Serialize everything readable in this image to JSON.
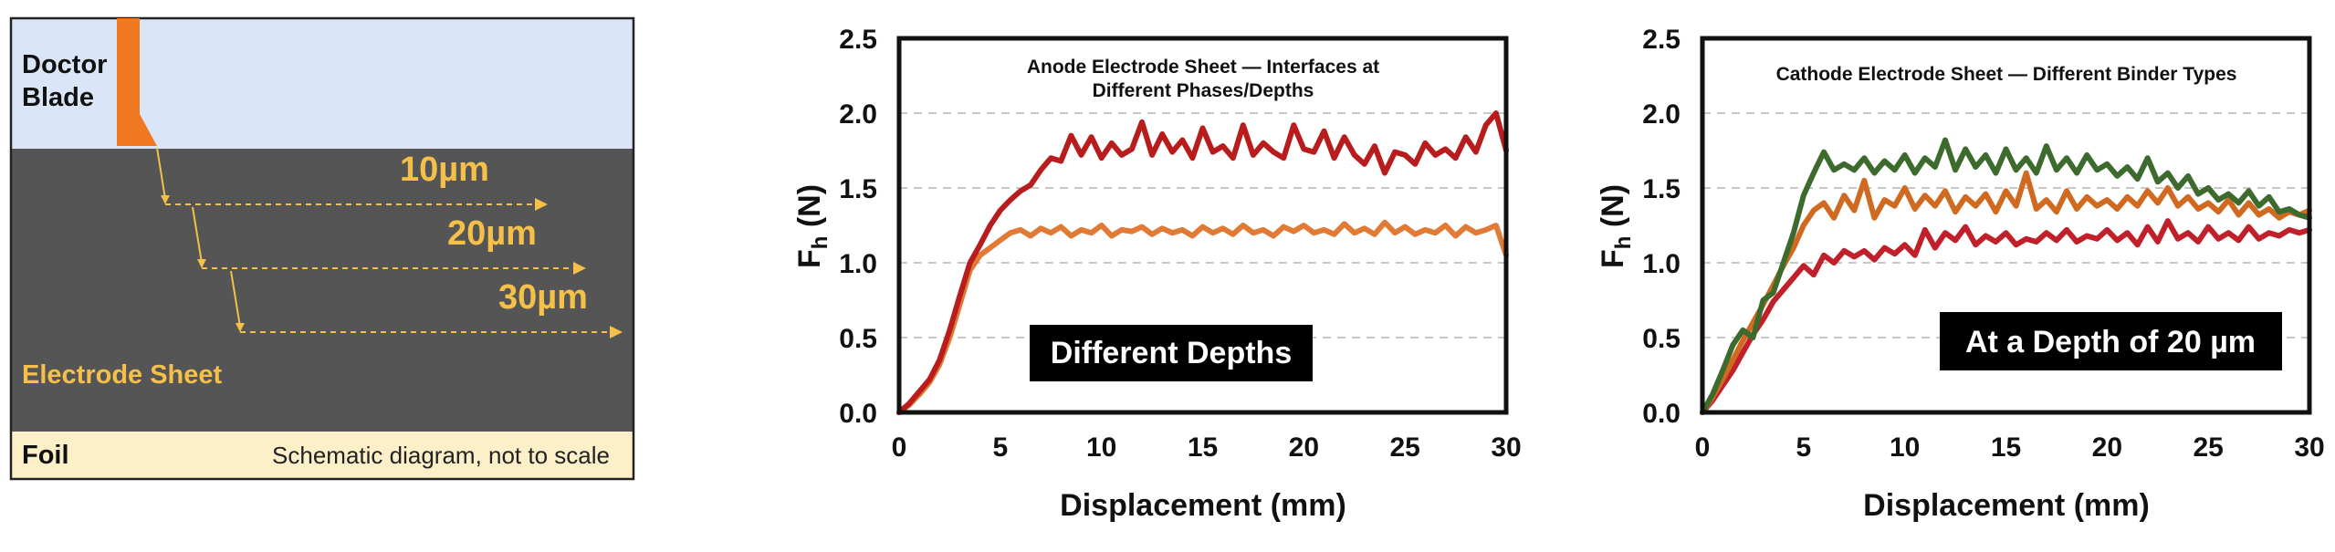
{
  "schematic": {
    "blade_label": [
      "Doctor",
      "Blade"
    ],
    "depths": [
      "10µm",
      "20µm",
      "30µm"
    ],
    "electrode_label": "Electrode Sheet",
    "foil_label": "Foil",
    "note": "Schematic diagram, not to scale",
    "colors": {
      "air": "#dbe5f8",
      "electrode": "#555555",
      "foil": "#fdf0c8",
      "blade": "#f07820",
      "arrow": "#f5c04a"
    }
  },
  "chart_data": [
    {
      "type": "line",
      "title": "Anode Electrode Sheet — Interfaces at Different Phases/Depths",
      "title_lines": [
        "Anode Electrode Sheet — Interfaces at",
        "Different Phases/Depths"
      ],
      "xlabel": "Displacement  (mm)",
      "ylabel": "F",
      "ylabel_sub": "h",
      "ylabel_unit": " (N)",
      "xlim": [
        0,
        30
      ],
      "ylim": [
        0,
        2.5
      ],
      "xticks": [
        "0",
        "5",
        "10",
        "15",
        "20",
        "25",
        "30"
      ],
      "yticks": [
        "0.0",
        "0.5",
        "1.0",
        "1.5",
        "2.0",
        "2.5"
      ],
      "grid": "horizontal dashed",
      "annotation": "Different Depths",
      "series": [
        {
          "color": "#e07a35",
          "x": [
            0,
            0.5,
            1,
            1.5,
            2,
            2.5,
            3,
            3.5,
            4,
            4.5,
            5,
            5.5,
            6,
            6.5,
            7,
            7.5,
            8,
            8.5,
            9,
            9.5,
            10,
            10.5,
            11,
            11.5,
            12,
            12.5,
            13,
            13.5,
            14,
            14.5,
            15,
            15.5,
            16,
            16.5,
            17,
            17.5,
            18,
            18.5,
            19,
            19.5,
            20,
            20.5,
            21,
            21.5,
            22,
            22.5,
            23,
            23.5,
            24,
            24.5,
            25,
            25.5,
            26,
            26.5,
            27,
            27.5,
            28,
            28.5,
            29,
            29.5,
            30
          ],
          "y": [
            0.0,
            0.05,
            0.12,
            0.2,
            0.32,
            0.5,
            0.72,
            0.95,
            1.05,
            1.1,
            1.15,
            1.2,
            1.22,
            1.18,
            1.23,
            1.2,
            1.24,
            1.18,
            1.22,
            1.2,
            1.25,
            1.18,
            1.22,
            1.21,
            1.24,
            1.19,
            1.23,
            1.2,
            1.22,
            1.18,
            1.24,
            1.2,
            1.23,
            1.19,
            1.25,
            1.2,
            1.22,
            1.18,
            1.24,
            1.21,
            1.25,
            1.2,
            1.22,
            1.19,
            1.26,
            1.2,
            1.23,
            1.19,
            1.27,
            1.2,
            1.24,
            1.19,
            1.22,
            1.2,
            1.25,
            1.18,
            1.24,
            1.2,
            1.22,
            1.25,
            1.05
          ]
        },
        {
          "color": "#b81c1c",
          "x": [
            0,
            0.5,
            1,
            1.5,
            2,
            2.5,
            3,
            3.5,
            4,
            4.5,
            5,
            5.5,
            6,
            6.5,
            7,
            7.5,
            8,
            8.5,
            9,
            9.5,
            10,
            10.5,
            11,
            11.5,
            12,
            12.5,
            13,
            13.5,
            14,
            14.5,
            15,
            15.5,
            16,
            16.5,
            17,
            17.5,
            18,
            18.5,
            19,
            19.5,
            20,
            20.5,
            21,
            21.5,
            22,
            22.5,
            23,
            23.5,
            24,
            24.5,
            25,
            25.5,
            26,
            26.5,
            27,
            27.5,
            28,
            28.5,
            29,
            29.5,
            30
          ],
          "y": [
            0.0,
            0.06,
            0.14,
            0.22,
            0.35,
            0.55,
            0.78,
            1.0,
            1.12,
            1.25,
            1.35,
            1.42,
            1.48,
            1.52,
            1.62,
            1.7,
            1.68,
            1.85,
            1.72,
            1.84,
            1.7,
            1.8,
            1.72,
            1.76,
            1.94,
            1.72,
            1.86,
            1.74,
            1.82,
            1.7,
            1.9,
            1.74,
            1.78,
            1.7,
            1.92,
            1.72,
            1.8,
            1.74,
            1.7,
            1.92,
            1.76,
            1.74,
            1.88,
            1.7,
            1.84,
            1.72,
            1.66,
            1.78,
            1.6,
            1.74,
            1.72,
            1.66,
            1.8,
            1.72,
            1.76,
            1.7,
            1.84,
            1.74,
            1.92,
            2.0,
            1.75
          ]
        }
      ]
    },
    {
      "type": "line",
      "title": "Cathode Electrode Sheet — Different Binder Types",
      "title_lines": [
        "Cathode Electrode Sheet — Different Binder Types"
      ],
      "xlabel": "Displacement  (mm)",
      "ylabel": "F",
      "ylabel_sub": "h",
      "ylabel_unit": " (N)",
      "xlim": [
        0,
        30
      ],
      "ylim": [
        0,
        2.5
      ],
      "xticks": [
        "0",
        "5",
        "10",
        "15",
        "20",
        "25",
        "30"
      ],
      "yticks": [
        "0.0",
        "0.5",
        "1.0",
        "1.5",
        "2.0",
        "2.5"
      ],
      "grid": "horizontal dashed",
      "annotation": "At a Depth of 20 µm",
      "series": [
        {
          "color": "#c0202a",
          "x": [
            0,
            0.5,
            1,
            1.5,
            2,
            2.5,
            3,
            3.5,
            4,
            4.5,
            5,
            5.5,
            6,
            6.5,
            7,
            7.5,
            8,
            8.5,
            9,
            9.5,
            10,
            10.5,
            11,
            11.5,
            12,
            12.5,
            13,
            13.5,
            14,
            14.5,
            15,
            15.5,
            16,
            16.5,
            17,
            17.5,
            18,
            18.5,
            19,
            19.5,
            20,
            20.5,
            21,
            21.5,
            22,
            22.5,
            23,
            23.5,
            24,
            24.5,
            25,
            25.5,
            26,
            26.5,
            27,
            27.5,
            28,
            28.5,
            29,
            29.5,
            30
          ],
          "y": [
            0.0,
            0.08,
            0.18,
            0.28,
            0.4,
            0.52,
            0.62,
            0.74,
            0.82,
            0.9,
            0.98,
            0.92,
            1.05,
            1.0,
            1.08,
            1.04,
            1.08,
            1.02,
            1.1,
            1.06,
            1.12,
            1.05,
            1.22,
            1.1,
            1.2,
            1.15,
            1.24,
            1.12,
            1.18,
            1.14,
            1.2,
            1.12,
            1.16,
            1.14,
            1.2,
            1.15,
            1.22,
            1.14,
            1.18,
            1.16,
            1.22,
            1.15,
            1.2,
            1.12,
            1.24,
            1.14,
            1.28,
            1.16,
            1.2,
            1.14,
            1.24,
            1.16,
            1.2,
            1.15,
            1.24,
            1.16,
            1.2,
            1.18,
            1.22,
            1.2,
            1.22
          ]
        },
        {
          "color": "#d06a20",
          "x": [
            0,
            0.5,
            1,
            1.5,
            2,
            2.5,
            3,
            3.5,
            4,
            4.5,
            5,
            5.5,
            6,
            6.5,
            7,
            7.5,
            8,
            8.5,
            9,
            9.5,
            10,
            10.5,
            11,
            11.5,
            12,
            12.5,
            13,
            13.5,
            14,
            14.5,
            15,
            15.5,
            16,
            16.5,
            17,
            17.5,
            18,
            18.5,
            19,
            19.5,
            20,
            20.5,
            21,
            21.5,
            22,
            22.5,
            23,
            23.5,
            24,
            24.5,
            25,
            25.5,
            26,
            26.5,
            27,
            27.5,
            28,
            28.5,
            29,
            29.5,
            30
          ],
          "y": [
            0.0,
            0.1,
            0.22,
            0.35,
            0.48,
            0.6,
            0.72,
            0.85,
            0.98,
            1.1,
            1.25,
            1.35,
            1.4,
            1.3,
            1.45,
            1.35,
            1.55,
            1.3,
            1.42,
            1.38,
            1.5,
            1.36,
            1.45,
            1.38,
            1.48,
            1.34,
            1.44,
            1.38,
            1.46,
            1.34,
            1.48,
            1.38,
            1.6,
            1.36,
            1.42,
            1.34,
            1.48,
            1.36,
            1.44,
            1.38,
            1.42,
            1.36,
            1.44,
            1.38,
            1.48,
            1.4,
            1.5,
            1.38,
            1.44,
            1.36,
            1.4,
            1.34,
            1.42,
            1.32,
            1.4,
            1.32,
            1.36,
            1.3,
            1.34,
            1.32,
            1.35
          ]
        },
        {
          "color": "#3d6b2e",
          "x": [
            0,
            0.5,
            1,
            1.5,
            2,
            2.5,
            3,
            3.5,
            4,
            4.5,
            5,
            5.5,
            6,
            6.5,
            7,
            7.5,
            8,
            8.5,
            9,
            9.5,
            10,
            10.5,
            11,
            11.5,
            12,
            12.5,
            13,
            13.5,
            14,
            14.5,
            15,
            15.5,
            16,
            16.5,
            17,
            17.5,
            18,
            18.5,
            19,
            19.5,
            20,
            20.5,
            21,
            21.5,
            22,
            22.5,
            23,
            23.5,
            24,
            24.5,
            25,
            25.5,
            26,
            26.5,
            27,
            27.5,
            28,
            28.5,
            29,
            29.5,
            30
          ],
          "y": [
            0.0,
            0.12,
            0.28,
            0.45,
            0.55,
            0.5,
            0.75,
            0.8,
            1.0,
            1.2,
            1.45,
            1.6,
            1.74,
            1.62,
            1.66,
            1.62,
            1.7,
            1.6,
            1.68,
            1.62,
            1.72,
            1.6,
            1.7,
            1.64,
            1.82,
            1.62,
            1.76,
            1.64,
            1.72,
            1.6,
            1.76,
            1.62,
            1.7,
            1.6,
            1.78,
            1.62,
            1.7,
            1.6,
            1.72,
            1.62,
            1.66,
            1.58,
            1.64,
            1.56,
            1.7,
            1.54,
            1.6,
            1.5,
            1.58,
            1.46,
            1.5,
            1.42,
            1.46,
            1.4,
            1.48,
            1.38,
            1.44,
            1.34,
            1.36,
            1.32,
            1.3
          ]
        }
      ]
    }
  ]
}
